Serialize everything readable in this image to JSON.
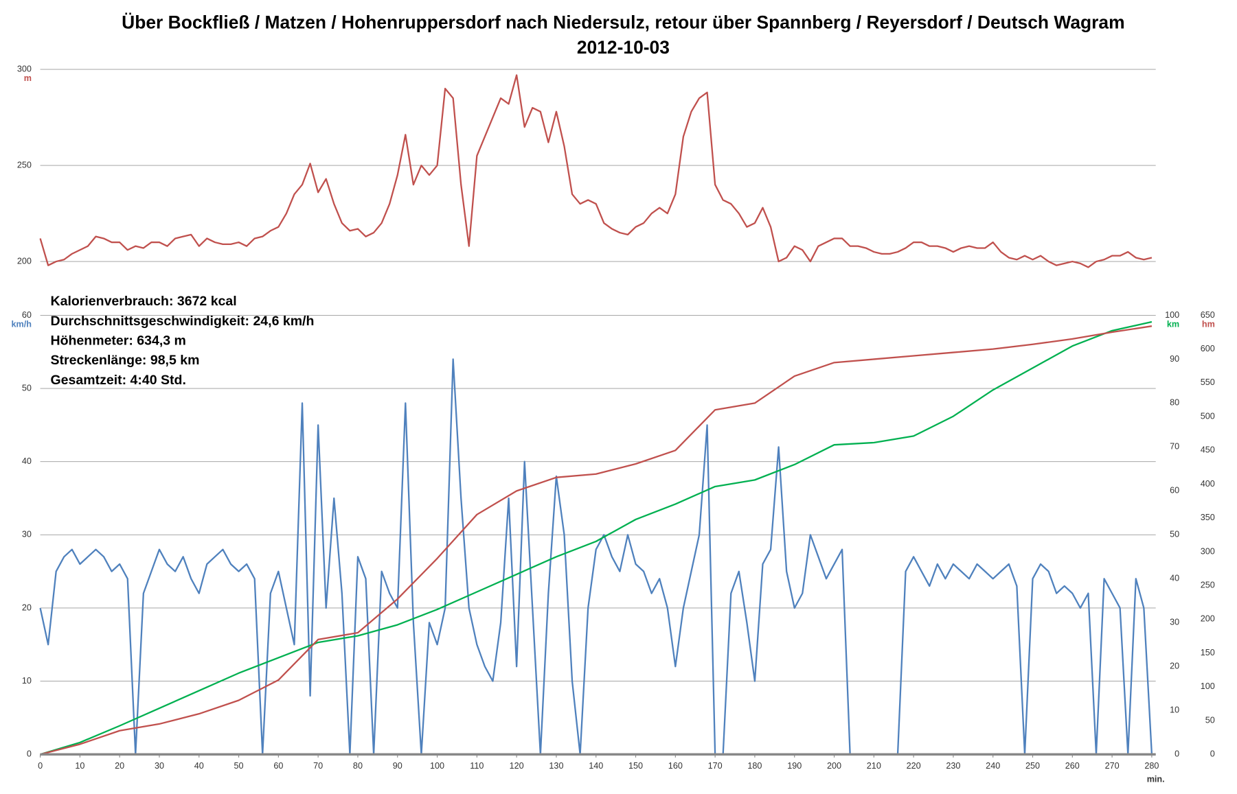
{
  "chart_data": [
    {
      "type": "line",
      "title": "Über Bockfließ / Matzen / Hohenruppersdorf nach Niedersulz, retour über Spannberg / Reyersdorf / Deutsch Wagram",
      "subtitle": "2012-10-03",
      "xlim": [
        0,
        281
      ],
      "ylim": [
        172,
        300
      ],
      "yticks": [
        200,
        250,
        300
      ],
      "y_label": "m",
      "grid": true,
      "series": [
        {
          "color": "#c0504d",
          "x": [
            0,
            2,
            4,
            6,
            8,
            10,
            12,
            14,
            16,
            18,
            20,
            22,
            24,
            26,
            28,
            30,
            32,
            34,
            36,
            38,
            40,
            42,
            44,
            46,
            48,
            50,
            52,
            54,
            56,
            58,
            60,
            62,
            64,
            66,
            68,
            70,
            72,
            74,
            76,
            78,
            80,
            82,
            84,
            86,
            88,
            90,
            92,
            94,
            96,
            98,
            100,
            102,
            104,
            106,
            108,
            110,
            112,
            114,
            116,
            118,
            120,
            122,
            124,
            126,
            128,
            130,
            132,
            134,
            136,
            138,
            140,
            142,
            144,
            146,
            148,
            150,
            152,
            154,
            156,
            158,
            160,
            162,
            164,
            166,
            168,
            170,
            172,
            174,
            176,
            178,
            180,
            182,
            184,
            186,
            188,
            190,
            192,
            194,
            196,
            198,
            200,
            202,
            204,
            206,
            208,
            210,
            212,
            214,
            216,
            218,
            220,
            222,
            224,
            226,
            228,
            230,
            232,
            234,
            236,
            238,
            240,
            242,
            244,
            246,
            248,
            250,
            252,
            254,
            256,
            258,
            260,
            262,
            264,
            266,
            268,
            270,
            272,
            274,
            276,
            278,
            280
          ],
          "values": [
            212,
            198,
            200,
            201,
            204,
            206,
            208,
            213,
            212,
            210,
            210,
            206,
            208,
            207,
            210,
            210,
            208,
            212,
            213,
            214,
            208,
            212,
            210,
            209,
            209,
            210,
            208,
            212,
            213,
            216,
            218,
            225,
            235,
            240,
            251,
            236,
            243,
            230,
            220,
            216,
            217,
            213,
            215,
            220,
            230,
            245,
            266,
            240,
            250,
            245,
            250,
            290,
            285,
            240,
            208,
            255,
            265,
            275,
            285,
            282,
            297,
            270,
            280,
            278,
            262,
            278,
            260,
            235,
            230,
            232,
            230,
            220,
            217,
            215,
            214,
            218,
            220,
            225,
            228,
            225,
            235,
            265,
            278,
            285,
            288,
            240,
            232,
            230,
            225,
            218,
            220,
            228,
            218,
            200,
            202,
            208,
            206,
            200,
            208,
            210,
            212,
            212,
            208,
            208,
            207,
            205,
            204,
            204,
            205,
            207,
            210,
            210,
            208,
            208,
            207,
            205,
            207,
            208,
            207,
            207,
            210,
            205,
            202,
            201,
            203,
            201,
            203,
            200,
            198,
            199,
            200,
            199,
            197,
            200,
            201,
            203,
            203,
            205,
            202,
            201,
            202
          ]
        }
      ]
    },
    {
      "type": "line",
      "annotations": [
        "Kalorienverbrauch: 3672 kcal",
        "Durchschnittsgeschwindigkeit: 24,6 km/h",
        "Höhenmeter: 634,3 m",
        "Streckenlänge: 98,5 km",
        "Gesamtzeit: 4:40 Std."
      ],
      "xlim": [
        0,
        281
      ],
      "xticks": [
        0,
        10,
        20,
        30,
        40,
        50,
        60,
        70,
        80,
        90,
        100,
        110,
        120,
        130,
        140,
        150,
        160,
        170,
        180,
        190,
        200,
        210,
        220,
        230,
        240,
        250,
        260,
        270,
        280
      ],
      "x_label": "min.",
      "ylim": [
        0,
        60
      ],
      "yticks": [
        0,
        10,
        20,
        30,
        40,
        50,
        60
      ],
      "y_label": "km/h",
      "y2lim": [
        0,
        100
      ],
      "y2ticks": [
        0,
        10,
        20,
        30,
        40,
        50,
        60,
        70,
        80,
        90,
        100
      ],
      "y2_label": "km",
      "y3lim": [
        0,
        650
      ],
      "y3ticks": [
        0,
        50,
        100,
        150,
        200,
        250,
        300,
        350,
        400,
        450,
        500,
        550,
        600,
        650
      ],
      "y3_label": "hm",
      "grid": true,
      "series": [
        {
          "color": "#4f81bd",
          "x": [
            0,
            2,
            4,
            6,
            8,
            10,
            12,
            14,
            16,
            18,
            20,
            22,
            24,
            26,
            28,
            30,
            32,
            34,
            36,
            38,
            40,
            42,
            44,
            46,
            48,
            50,
            52,
            54,
            56,
            58,
            60,
            62,
            64,
            66,
            68,
            70,
            72,
            74,
            76,
            78,
            80,
            82,
            84,
            86,
            88,
            90,
            92,
            94,
            96,
            98,
            100,
            102,
            104,
            106,
            108,
            110,
            112,
            114,
            116,
            118,
            120,
            122,
            124,
            126,
            128,
            130,
            132,
            134,
            136,
            138,
            140,
            142,
            144,
            146,
            148,
            150,
            152,
            154,
            156,
            158,
            160,
            162,
            164,
            166,
            168,
            170,
            172,
            174,
            176,
            178,
            180,
            182,
            184,
            186,
            188,
            190,
            192,
            194,
            196,
            198,
            200,
            202,
            204,
            206,
            208,
            210,
            212,
            214,
            216,
            218,
            220,
            222,
            224,
            226,
            228,
            230,
            232,
            234,
            236,
            238,
            240,
            242,
            244,
            246,
            248,
            250,
            252,
            254,
            256,
            258,
            260,
            262,
            264,
            266,
            268,
            270,
            272,
            274,
            276,
            278,
            280
          ],
          "values": [
            20,
            15,
            25,
            27,
            28,
            26,
            27,
            28,
            27,
            25,
            26,
            24,
            0,
            22,
            25,
            28,
            26,
            25,
            27,
            24,
            22,
            26,
            27,
            28,
            26,
            25,
            26,
            24,
            0,
            22,
            25,
            20,
            15,
            48,
            8,
            45,
            20,
            35,
            22,
            0,
            27,
            24,
            0,
            25,
            22,
            20,
            48,
            18,
            0,
            18,
            15,
            20,
            54,
            35,
            20,
            15,
            12,
            10,
            18,
            35,
            12,
            40,
            20,
            0,
            22,
            38,
            30,
            10,
            0,
            20,
            28,
            30,
            27,
            25,
            30,
            26,
            25,
            22,
            24,
            20,
            12,
            20,
            25,
            30,
            45,
            0,
            0,
            22,
            25,
            18,
            10,
            26,
            28,
            42,
            25,
            20,
            22,
            30,
            27,
            24,
            26,
            28,
            0,
            0,
            0,
            0,
            0,
            0,
            0,
            25,
            27,
            25,
            23,
            26,
            24,
            26,
            25,
            24,
            26,
            25,
            24,
            25,
            26,
            23,
            0,
            24,
            26,
            25,
            22,
            23,
            22,
            20,
            22,
            0,
            24,
            22,
            20,
            0,
            24,
            20,
            0
          ]
        },
        {
          "color": "#00b050",
          "axis": "y2",
          "x": [
            0,
            10,
            20,
            30,
            40,
            50,
            60,
            70,
            80,
            90,
            100,
            110,
            120,
            130,
            140,
            150,
            160,
            170,
            180,
            190,
            200,
            210,
            220,
            230,
            240,
            250,
            260,
            270,
            280
          ],
          "values": [
            0,
            2.7,
            6.5,
            10.5,
            14.5,
            18.5,
            22,
            25.5,
            27,
            29.5,
            33,
            37,
            41,
            45,
            48.5,
            53.5,
            57,
            61,
            62.5,
            66,
            70.5,
            71,
            72.5,
            77,
            83,
            88,
            93,
            96.5,
            98.5
          ]
        },
        {
          "color": "#c0504d",
          "axis": "y3",
          "x": [
            0,
            10,
            20,
            30,
            40,
            50,
            60,
            70,
            80,
            90,
            100,
            110,
            120,
            130,
            140,
            150,
            160,
            170,
            180,
            190,
            200,
            210,
            220,
            230,
            240,
            250,
            260,
            270,
            280
          ],
          "values": [
            0,
            15,
            35,
            45,
            60,
            80,
            110,
            170,
            180,
            230,
            290,
            355,
            390,
            410,
            415,
            430,
            450,
            510,
            520,
            560,
            580,
            585,
            590,
            595,
            600,
            607,
            615,
            625,
            634
          ]
        }
      ]
    }
  ]
}
